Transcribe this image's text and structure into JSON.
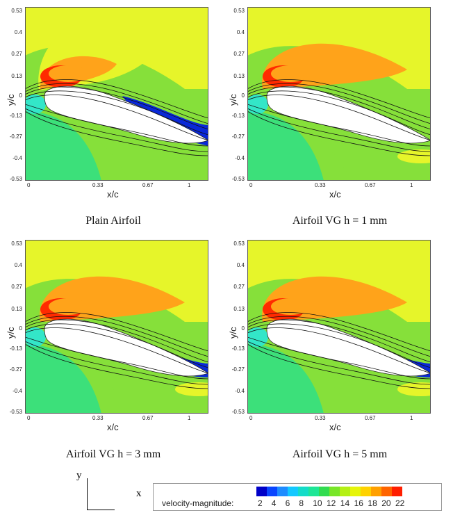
{
  "axes": {
    "y_label": "y/c",
    "x_label": "x/c",
    "y_ticks": [
      "0.53",
      "0.4",
      "0.27",
      "0.13",
      "0",
      "-0.13",
      "-0.27",
      "-0.4",
      "-0.53"
    ],
    "x_ticks": [
      "0",
      "0.33",
      "0.67",
      "1"
    ]
  },
  "panels": [
    {
      "caption": "Plain Airfoil",
      "wake": "large-separation"
    },
    {
      "caption": "Airfoil VG h = 1 mm",
      "wake": "attached"
    },
    {
      "caption": "Airfoil VG h = 3 mm",
      "wake": "small-separation"
    },
    {
      "caption": "Airfoil VG h = 5 mm",
      "wake": "medium-separation"
    }
  ],
  "coordinate_indicator": {
    "y": "y",
    "x": "x"
  },
  "legend": {
    "label": "velocity-magnitude:",
    "values": [
      "2",
      "4",
      "6",
      "8",
      "10",
      "12",
      "14",
      "16",
      "18",
      "20",
      "22"
    ],
    "colors": [
      "#0000c8",
      "#0a46ff",
      "#1e8cff",
      "#14c8ff",
      "#14dcc8",
      "#1ee696",
      "#32dc50",
      "#78e628",
      "#b4f014",
      "#e6f50a",
      "#ffd200",
      "#ffa000",
      "#ff6400",
      "#ff1e00"
    ]
  },
  "colors": {
    "freestream": "#e6f52a",
    "high_speed": "#ffa31a",
    "peak": "#ff2a00",
    "mid": "#86e03a",
    "low": "#3ce07a",
    "slow": "#33e6c8",
    "separated": "#0a28d8"
  }
}
